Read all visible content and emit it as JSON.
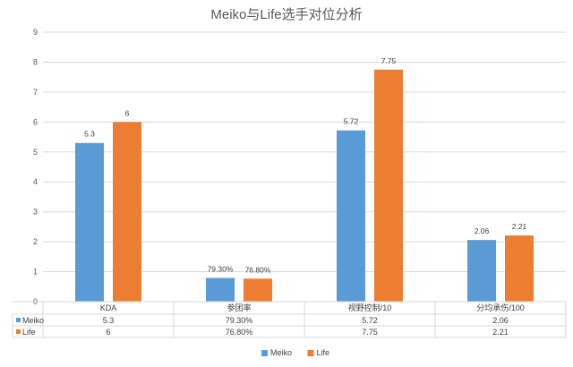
{
  "chart_data": {
    "type": "bar",
    "title": "Meiko与Life选手对位分析",
    "categories": [
      "KDA",
      "参团率",
      "视野控制/10",
      "分均承伤/100"
    ],
    "series": [
      {
        "name": "Meiko",
        "color": "#5b9bd5",
        "values": [
          5.3,
          0.793,
          5.72,
          2.06
        ],
        "labels": [
          "5.3",
          "79.30%",
          "5.72",
          "2.06"
        ]
      },
      {
        "name": "Life",
        "color": "#ed7d31",
        "values": [
          6,
          0.768,
          7.75,
          2.21
        ],
        "labels": [
          "6",
          "76.80%",
          "7.75",
          "2.21"
        ]
      }
    ],
    "ylim": [
      0,
      9
    ],
    "yticks": [
      "0",
      "1",
      "2",
      "3",
      "4",
      "5",
      "6",
      "7",
      "8",
      "9"
    ],
    "grid": true,
    "legend": "bottom",
    "data_table": true
  }
}
